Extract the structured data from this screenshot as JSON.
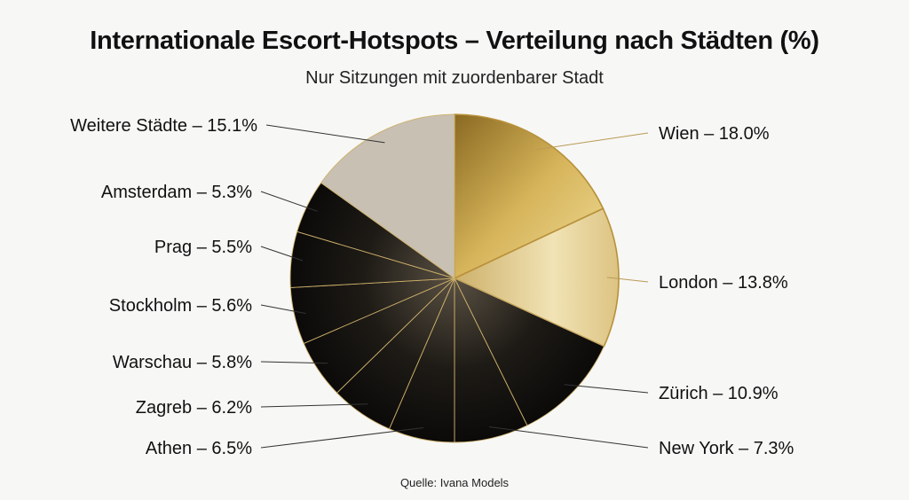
{
  "header": {
    "title": "Internationale Escort-Hotspots – Verteilung nach Städten (%)",
    "subtitle": "Nur Sitzungen mit zuordenbarer Stadt"
  },
  "footer": {
    "source": "Quelle: Ivana Models"
  },
  "chart_data": {
    "type": "pie",
    "title": "Internationale Escort-Hotspots – Verteilung nach Städten (%)",
    "subtitle": "Nur Sitzungen mit zuordenbarer Stadt",
    "unit": "%",
    "slices": [
      {
        "label": "Wien",
        "value": 18.0,
        "color": "#c9a64a",
        "display": "Wien – 18.0%"
      },
      {
        "label": "London",
        "value": 13.8,
        "color": "#e2cc8e",
        "display": "London – 13.8%"
      },
      {
        "label": "Zürich",
        "value": 10.9,
        "color": "#141210",
        "display": "Zürich – 10.9%"
      },
      {
        "label": "New York",
        "value": 7.3,
        "color": "#141210",
        "display": "New York – 7.3%"
      },
      {
        "label": "Athen",
        "value": 6.5,
        "color": "#141210",
        "display": "Athen – 6.5%"
      },
      {
        "label": "Zagreb",
        "value": 6.2,
        "color": "#141210",
        "display": "Zagreb – 6.2%"
      },
      {
        "label": "Warschau",
        "value": 5.8,
        "color": "#141210",
        "display": "Warschau – 5.8%"
      },
      {
        "label": "Stockholm",
        "value": 5.6,
        "color": "#141210",
        "display": "Stockholm – 5.6%"
      },
      {
        "label": "Prag",
        "value": 5.5,
        "color": "#141210",
        "display": "Prag – 5.5%"
      },
      {
        "label": "Amsterdam",
        "value": 5.3,
        "color": "#141210",
        "display": "Amsterdam – 5.3%"
      },
      {
        "label": "Weitere Städte",
        "value": 15.1,
        "color": "#c8c0b2",
        "display": "Weitere Städte – 15.1%"
      }
    ],
    "legend": "labels around pie"
  }
}
